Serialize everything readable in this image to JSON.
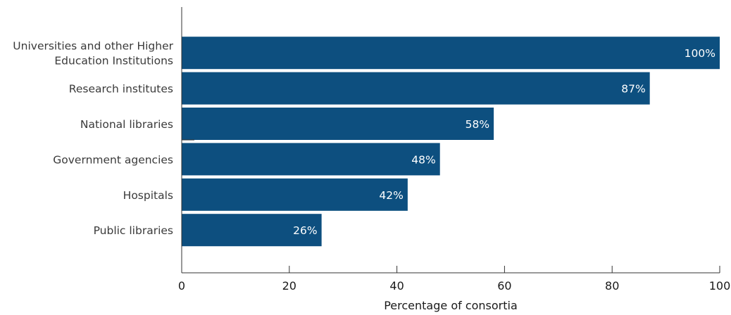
{
  "chart_data": {
    "type": "bar",
    "orientation": "horizontal",
    "categories": [
      [
        "Universities and other Higher",
        "Education Institutions"
      ],
      [
        "Research institutes"
      ],
      [
        "National libraries"
      ],
      [
        "Government agencies"
      ],
      [
        "Hospitals"
      ],
      [
        "Public libraries"
      ]
    ],
    "values": [
      100,
      87,
      58,
      48,
      42,
      26
    ],
    "value_labels": [
      "100%",
      "87%",
      "58%",
      "48%",
      "42%",
      "26%"
    ],
    "xlabel": "Percentage of consortia",
    "ylabel": "",
    "xlim": [
      0,
      100
    ],
    "xticks": [
      0,
      20,
      40,
      60,
      80,
      100
    ],
    "bar_color": "#0d4f7f",
    "grid": false,
    "legend": "none"
  }
}
